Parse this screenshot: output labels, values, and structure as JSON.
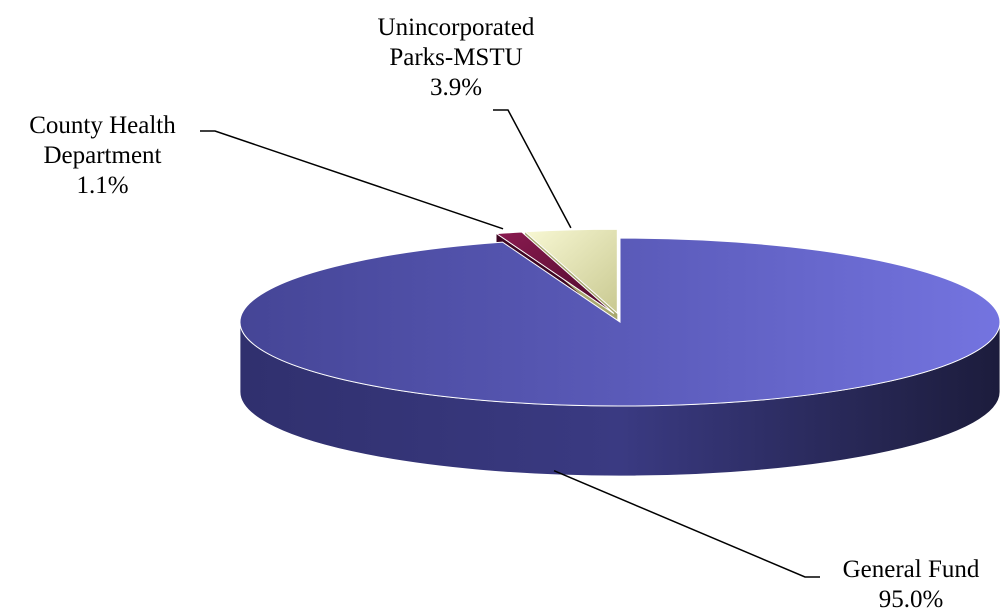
{
  "chart_data": {
    "type": "pie",
    "title": "",
    "slices": [
      {
        "label_lines": [
          "General Fund"
        ],
        "value": 95.0,
        "value_label": "95.0%",
        "color": "#5e5ec2"
      },
      {
        "label_lines": [
          "County Health",
          "Department"
        ],
        "value": 1.1,
        "value_label": "1.1%",
        "color": "#6a0f3c"
      },
      {
        "label_lines": [
          "Unincorporated",
          "Parks-MSTU"
        ],
        "value": 3.9,
        "value_label": "3.9%",
        "color": "#ececb4"
      }
    ]
  }
}
